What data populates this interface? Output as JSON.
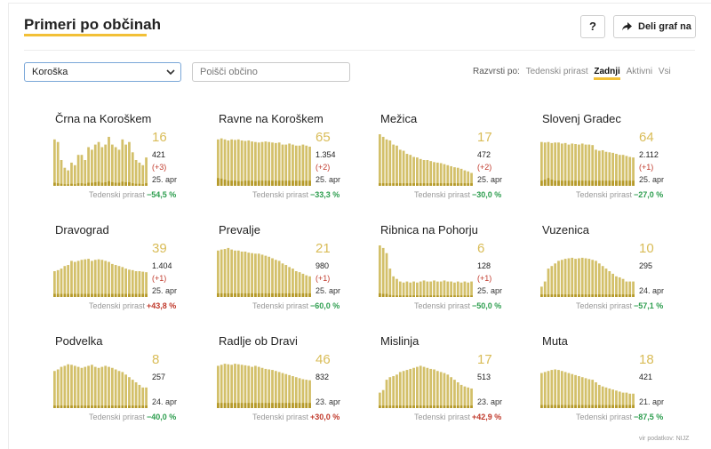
{
  "header": {
    "title": "Primeri po občinah",
    "help_label": "?",
    "share_label": "Deli graf na"
  },
  "controls": {
    "region_value": "Koroška",
    "search_placeholder": "Poišči občino",
    "sort_label": "Razvrsti po:",
    "sort_options": [
      "Tedenski prirast",
      "Zadnji",
      "Aktivni",
      "Vsi"
    ],
    "sort_active": "Zadnji"
  },
  "weekly_label": "Tedenski prirast",
  "source": "vir podatkov: NIJZ",
  "colors": {
    "accent": "#f2c037",
    "bar": "#d3c06a",
    "bar_dark": "#b59a2a",
    "green": "#2e9e4f",
    "red": "#c0392b"
  },
  "municipalities": [
    {
      "name": "Črna na Koroškem",
      "count": "16",
      "total": "421",
      "change": "(+3)",
      "date": "25. apr",
      "weekly": "−54,5 %",
      "trend": "neg",
      "bars": [
        0.9,
        0.85,
        0.5,
        0.35,
        0.3,
        0.45,
        0.4,
        0.6,
        0.6,
        0.5,
        0.75,
        0.7,
        0.8,
        0.85,
        0.75,
        0.8,
        0.95,
        0.8,
        0.75,
        0.7,
        0.9,
        0.8,
        0.85,
        0.65,
        0.5,
        0.45,
        0.4,
        0.55
      ],
      "dark": [
        0.06,
        0.05,
        0.04,
        0.03,
        0.03,
        0.04,
        0.03,
        0.05,
        0.05,
        0.04,
        0.06,
        0.06,
        0.07,
        0.08,
        0.06,
        0.07,
        0.09,
        0.07,
        0.06,
        0.06,
        0.08,
        0.07,
        0.07,
        0.05,
        0.04,
        0.04,
        0.03,
        0.05
      ]
    },
    {
      "name": "Ravne na Koroškem",
      "count": "65",
      "total": "1.354",
      "change": "(+2)",
      "date": "25. apr",
      "weekly": "−33,3 %",
      "trend": "neg",
      "bars": [
        0.9,
        0.92,
        0.9,
        0.88,
        0.9,
        0.89,
        0.9,
        0.88,
        0.87,
        0.88,
        0.86,
        0.85,
        0.84,
        0.85,
        0.86,
        0.85,
        0.84,
        0.83,
        0.84,
        0.8,
        0.8,
        0.82,
        0.8,
        0.78,
        0.78,
        0.8,
        0.78,
        0.76
      ],
      "dark": [
        0.15,
        0.14,
        0.12,
        0.1,
        0.1,
        0.1,
        0.09,
        0.09,
        0.1,
        0.1,
        0.1,
        0.09,
        0.1,
        0.1,
        0.1,
        0.1,
        0.1,
        0.1,
        0.1,
        0.1,
        0.1,
        0.1,
        0.1,
        0.1,
        0.1,
        0.1,
        0.1,
        0.1
      ]
    },
    {
      "name": "Mežica",
      "count": "17",
      "total": "472",
      "change": "(+2)",
      "date": "25. apr",
      "weekly": "−30,0 %",
      "trend": "neg",
      "bars": [
        1.0,
        0.95,
        0.9,
        0.88,
        0.8,
        0.78,
        0.7,
        0.68,
        0.62,
        0.6,
        0.56,
        0.55,
        0.52,
        0.5,
        0.5,
        0.48,
        0.46,
        0.45,
        0.44,
        0.42,
        0.4,
        0.38,
        0.36,
        0.35,
        0.33,
        0.3,
        0.28,
        0.25
      ],
      "dark": [
        0.05,
        0.05,
        0.05,
        0.05,
        0.05,
        0.05,
        0.05,
        0.05,
        0.05,
        0.05,
        0.05,
        0.05,
        0.05,
        0.05,
        0.05,
        0.05,
        0.05,
        0.05,
        0.05,
        0.05,
        0.05,
        0.05,
        0.05,
        0.05,
        0.05,
        0.05,
        0.05,
        0.05
      ]
    },
    {
      "name": "Slovenj Gradec",
      "count": "64",
      "total": "2.112",
      "change": "(+1)",
      "date": "25. apr",
      "weekly": "−27,0 %",
      "trend": "neg",
      "bars": [
        0.85,
        0.84,
        0.85,
        0.83,
        0.84,
        0.84,
        0.82,
        0.83,
        0.8,
        0.82,
        0.81,
        0.8,
        0.82,
        0.8,
        0.8,
        0.79,
        0.7,
        0.68,
        0.69,
        0.66,
        0.65,
        0.64,
        0.62,
        0.6,
        0.6,
        0.58,
        0.56,
        0.55
      ],
      "dark": [
        0.1,
        0.12,
        0.15,
        0.12,
        0.1,
        0.1,
        0.1,
        0.1,
        0.1,
        0.1,
        0.1,
        0.1,
        0.1,
        0.1,
        0.1,
        0.1,
        0.1,
        0.1,
        0.1,
        0.1,
        0.1,
        0.1,
        0.1,
        0.1,
        0.1,
        0.1,
        0.1,
        0.1
      ]
    },
    {
      "name": "Dravograd",
      "count": "39",
      "total": "1.404",
      "change": "(+1)",
      "date": "25. apr",
      "weekly": "+43,8 %",
      "trend": "pos",
      "bars": [
        0.5,
        0.52,
        0.55,
        0.6,
        0.62,
        0.7,
        0.68,
        0.7,
        0.72,
        0.73,
        0.74,
        0.7,
        0.72,
        0.73,
        0.72,
        0.7,
        0.68,
        0.64,
        0.62,
        0.6,
        0.58,
        0.55,
        0.53,
        0.52,
        0.5,
        0.5,
        0.49,
        0.48
      ],
      "dark": [
        0.06,
        0.06,
        0.06,
        0.06,
        0.06,
        0.06,
        0.06,
        0.06,
        0.06,
        0.06,
        0.06,
        0.06,
        0.06,
        0.06,
        0.06,
        0.06,
        0.06,
        0.06,
        0.06,
        0.06,
        0.06,
        0.06,
        0.06,
        0.06,
        0.06,
        0.06,
        0.06,
        0.06
      ]
    },
    {
      "name": "Prevalje",
      "count": "21",
      "total": "980",
      "change": "(+1)",
      "date": "25. apr",
      "weekly": "−60,0 %",
      "trend": "neg",
      "bars": [
        0.9,
        0.92,
        0.93,
        0.95,
        0.92,
        0.9,
        0.9,
        0.88,
        0.88,
        0.86,
        0.85,
        0.84,
        0.84,
        0.82,
        0.8,
        0.78,
        0.75,
        0.72,
        0.7,
        0.65,
        0.62,
        0.58,
        0.55,
        0.5,
        0.48,
        0.45,
        0.42,
        0.4
      ],
      "dark": [
        0.07,
        0.07,
        0.07,
        0.07,
        0.07,
        0.07,
        0.07,
        0.07,
        0.07,
        0.07,
        0.07,
        0.07,
        0.07,
        0.07,
        0.07,
        0.07,
        0.07,
        0.07,
        0.07,
        0.07,
        0.07,
        0.07,
        0.07,
        0.07,
        0.07,
        0.07,
        0.07,
        0.07
      ]
    },
    {
      "name": "Ribnica na Pohorju",
      "count": "6",
      "total": "128",
      "change": "(+1)",
      "date": "25. apr",
      "weekly": "−50,0 %",
      "trend": "neg",
      "bars": [
        1.0,
        0.95,
        0.85,
        0.55,
        0.4,
        0.35,
        0.3,
        0.28,
        0.3,
        0.28,
        0.3,
        0.28,
        0.3,
        0.32,
        0.3,
        0.3,
        0.32,
        0.3,
        0.3,
        0.32,
        0.3,
        0.3,
        0.28,
        0.3,
        0.28,
        0.3,
        0.28,
        0.3
      ],
      "dark": [
        0.07,
        0.06,
        0.06,
        0.04,
        0.03,
        0.03,
        0.03,
        0.03,
        0.03,
        0.03,
        0.03,
        0.03,
        0.03,
        0.03,
        0.03,
        0.03,
        0.03,
        0.03,
        0.03,
        0.03,
        0.03,
        0.03,
        0.03,
        0.03,
        0.03,
        0.03,
        0.03,
        0.03
      ]
    },
    {
      "name": "Vuzenica",
      "count": "10",
      "total": "295",
      "change": "",
      "date": "24. apr",
      "weekly": "−57,1 %",
      "trend": "neg",
      "bars": [
        0.2,
        0.3,
        0.55,
        0.6,
        0.65,
        0.7,
        0.72,
        0.74,
        0.75,
        0.76,
        0.74,
        0.75,
        0.76,
        0.75,
        0.74,
        0.72,
        0.7,
        0.65,
        0.6,
        0.55,
        0.5,
        0.45,
        0.4,
        0.38,
        0.35,
        0.3,
        0.3,
        0.3
      ],
      "dark": [
        0.05,
        0.05,
        0.05,
        0.05,
        0.05,
        0.05,
        0.05,
        0.05,
        0.05,
        0.05,
        0.05,
        0.05,
        0.05,
        0.05,
        0.05,
        0.05,
        0.05,
        0.05,
        0.05,
        0.05,
        0.05,
        0.05,
        0.05,
        0.05,
        0.05,
        0.05,
        0.05,
        0.05
      ]
    },
    {
      "name": "Podvelka",
      "count": "8",
      "total": "257",
      "change": "",
      "date": "24. apr",
      "weekly": "−40,0 %",
      "trend": "neg",
      "bars": [
        0.72,
        0.75,
        0.8,
        0.82,
        0.85,
        0.84,
        0.82,
        0.8,
        0.78,
        0.8,
        0.82,
        0.84,
        0.8,
        0.78,
        0.8,
        0.82,
        0.8,
        0.78,
        0.75,
        0.72,
        0.7,
        0.65,
        0.6,
        0.55,
        0.5,
        0.45,
        0.4,
        0.4
      ],
      "dark": [
        0.05,
        0.05,
        0.05,
        0.05,
        0.05,
        0.05,
        0.05,
        0.05,
        0.05,
        0.05,
        0.05,
        0.05,
        0.05,
        0.05,
        0.05,
        0.05,
        0.05,
        0.05,
        0.05,
        0.05,
        0.05,
        0.05,
        0.05,
        0.05,
        0.05,
        0.05,
        0.05,
        0.05
      ]
    },
    {
      "name": "Radlje ob Dravi",
      "count": "46",
      "total": "832",
      "change": "",
      "date": "23. apr",
      "weekly": "+30,0 %",
      "trend": "pos",
      "bars": [
        0.82,
        0.84,
        0.86,
        0.85,
        0.84,
        0.86,
        0.85,
        0.84,
        0.83,
        0.82,
        0.8,
        0.82,
        0.8,
        0.78,
        0.76,
        0.75,
        0.74,
        0.72,
        0.7,
        0.68,
        0.66,
        0.64,
        0.62,
        0.6,
        0.58,
        0.56,
        0.55,
        0.54
      ],
      "dark": [
        0.1,
        0.1,
        0.1,
        0.1,
        0.1,
        0.1,
        0.1,
        0.1,
        0.1,
        0.1,
        0.1,
        0.1,
        0.1,
        0.1,
        0.1,
        0.1,
        0.1,
        0.1,
        0.1,
        0.1,
        0.1,
        0.1,
        0.1,
        0.1,
        0.1,
        0.1,
        0.1,
        0.1
      ]
    },
    {
      "name": "Mislinja",
      "count": "17",
      "total": "513",
      "change": "",
      "date": "23. apr",
      "weekly": "+42,9 %",
      "trend": "pos",
      "bars": [
        0.3,
        0.35,
        0.55,
        0.6,
        0.62,
        0.65,
        0.7,
        0.72,
        0.74,
        0.76,
        0.78,
        0.8,
        0.82,
        0.8,
        0.78,
        0.76,
        0.75,
        0.72,
        0.7,
        0.68,
        0.65,
        0.6,
        0.55,
        0.5,
        0.45,
        0.42,
        0.4,
        0.38
      ],
      "dark": [
        0.05,
        0.05,
        0.05,
        0.05,
        0.05,
        0.05,
        0.05,
        0.05,
        0.05,
        0.05,
        0.05,
        0.05,
        0.05,
        0.05,
        0.05,
        0.05,
        0.05,
        0.05,
        0.05,
        0.05,
        0.05,
        0.05,
        0.05,
        0.05,
        0.05,
        0.05,
        0.05,
        0.05
      ]
    },
    {
      "name": "Muta",
      "count": "18",
      "total": "421",
      "change": "",
      "date": "21. apr",
      "weekly": "−87,5 %",
      "trend": "neg",
      "bars": [
        0.68,
        0.7,
        0.72,
        0.74,
        0.75,
        0.74,
        0.72,
        0.7,
        0.68,
        0.66,
        0.64,
        0.62,
        0.6,
        0.58,
        0.56,
        0.55,
        0.5,
        0.45,
        0.42,
        0.4,
        0.38,
        0.36,
        0.34,
        0.32,
        0.3,
        0.3,
        0.28,
        0.28
      ],
      "dark": [
        0.06,
        0.06,
        0.06,
        0.06,
        0.06,
        0.06,
        0.06,
        0.06,
        0.06,
        0.06,
        0.06,
        0.06,
        0.06,
        0.06,
        0.06,
        0.06,
        0.06,
        0.06,
        0.06,
        0.06,
        0.06,
        0.06,
        0.06,
        0.06,
        0.06,
        0.06,
        0.06,
        0.06
      ]
    }
  ]
}
